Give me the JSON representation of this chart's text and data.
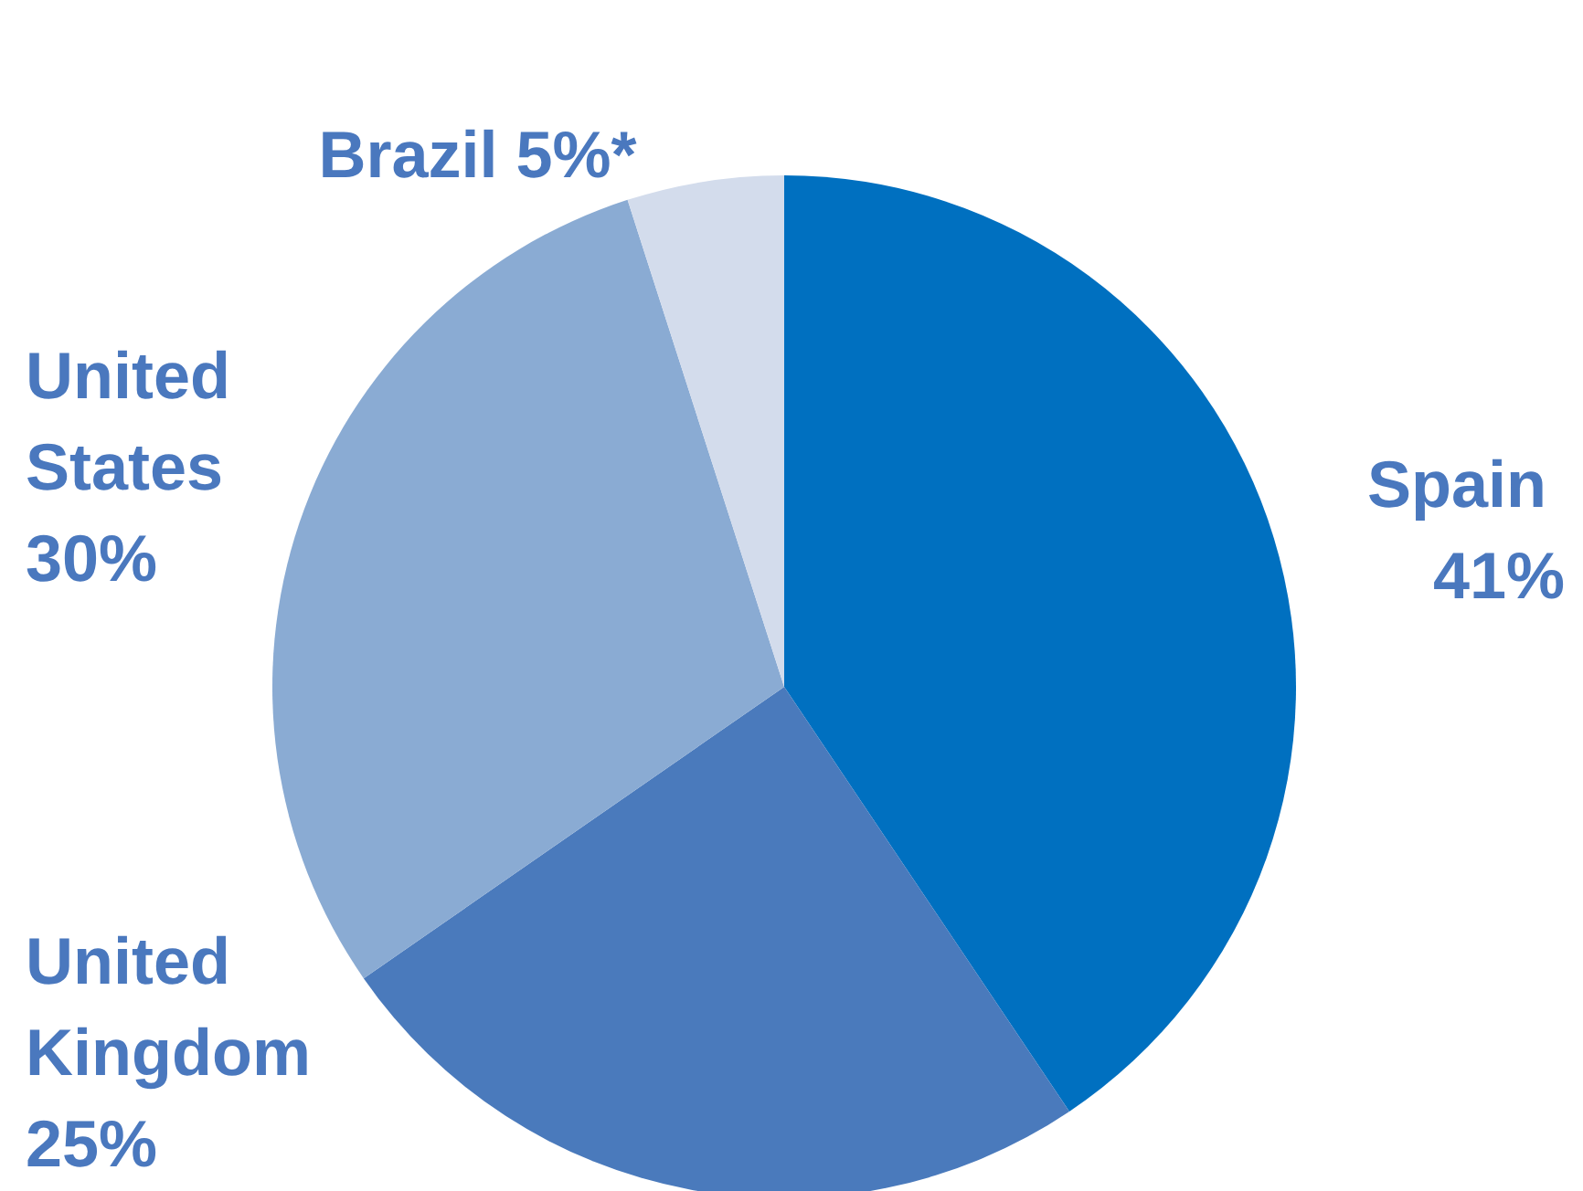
{
  "chart_data": {
    "type": "pie",
    "categories": [
      "Spain",
      "United Kingdom",
      "United States",
      "Brazil"
    ],
    "values": [
      41,
      25,
      30,
      5
    ],
    "colors": [
      "#0070c0",
      "#4a7abc",
      "#8aabd3",
      "#d3dcec"
    ],
    "value_labels": [
      "41%",
      "25%",
      "30%",
      "5%*"
    ]
  }
}
